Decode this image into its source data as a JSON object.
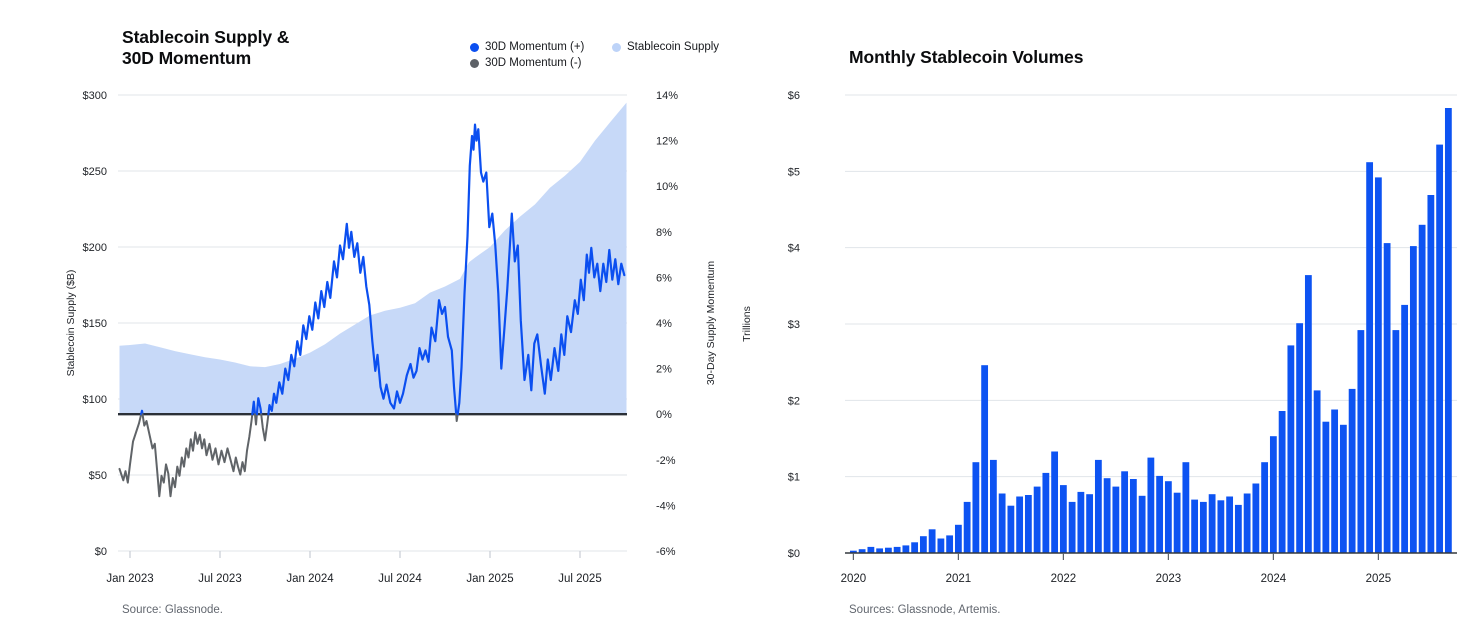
{
  "left_chart": {
    "title_line1": "Stablecoin Supply &",
    "title_line2": "30D Momentum",
    "legend": [
      {
        "label": "30D Momentum (+)",
        "color": "#0b4ff0"
      },
      {
        "label": "30D Momentum (-)",
        "color": "#5d6167"
      },
      {
        "label": "Stablecoin Supply",
        "color": "#bdd3f8"
      }
    ],
    "source": "Source: Glassnode."
  },
  "right_chart": {
    "title": "Monthly Stablecoin Volumes",
    "source": "Sources: Glassnode, Artemis."
  },
  "colors": {
    "gridline": "#e1e4e9",
    "axis_line": "#c9cdd4",
    "zero_line": "#2b3038",
    "bar_baseline": "#33383f",
    "momentum_positive": "#0b4ff0",
    "momentum_negative": "#606468",
    "supply_area": "#c7d9f8",
    "bar": "#0d53f2"
  },
  "chart_data": [
    {
      "type": "line",
      "title": "Stablecoin Supply & 30D Momentum",
      "x_axis": {
        "tick_labels": [
          "Jan 2023",
          "Jul 2023",
          "Jan 2024",
          "Jul 2024",
          "Jan 2025",
          "Jul 2025"
        ],
        "unit": "months since Jan 2023"
      },
      "y_left": {
        "label": "Stablecoin Supply ($B)",
        "tick_labels": [
          "$0",
          "$50",
          "$100",
          "$150",
          "$200",
          "$250",
          "$300"
        ],
        "range": [
          0,
          300
        ]
      },
      "y_right": {
        "label": "30-Day Supply Momentum",
        "tick_labels": [
          "14%",
          "12%",
          "10%",
          "8%",
          "6%",
          "4%",
          "2%",
          "0%",
          "-2%",
          "-4%",
          "-6%"
        ],
        "range": [
          -6,
          14
        ]
      },
      "series": [
        {
          "name": "Stablecoin Supply",
          "type": "area",
          "axis": "left",
          "fills_down_to": "momentum zero line",
          "points": [
            [
              -0.7,
              135
            ],
            [
              0,
              135.5
            ],
            [
              1,
              136.5
            ],
            [
              2,
              134
            ],
            [
              3,
              131.5
            ],
            [
              4,
              129.5
            ],
            [
              5,
              127.5
            ],
            [
              6,
              126
            ],
            [
              7,
              124
            ],
            [
              8,
              121.5
            ],
            [
              9,
              121
            ],
            [
              10,
              123
            ],
            [
              11,
              126.5
            ],
            [
              12,
              130.5
            ],
            [
              13,
              136
            ],
            [
              14,
              143
            ],
            [
              15,
              149
            ],
            [
              16,
              155
            ],
            [
              17,
              158
            ],
            [
              18,
              160
            ],
            [
              19,
              163
            ],
            [
              20,
              170
            ],
            [
              21,
              174
            ],
            [
              22,
              179
            ],
            [
              22.6,
              190
            ],
            [
              23,
              193
            ],
            [
              24,
              200
            ],
            [
              25,
              211
            ],
            [
              26,
              220
            ],
            [
              27,
              228
            ],
            [
              28,
              239
            ],
            [
              29,
              247
            ],
            [
              30,
              256
            ],
            [
              31,
              270
            ],
            [
              32,
              282
            ],
            [
              33.1,
              295
            ]
          ]
        },
        {
          "name": "30D Momentum",
          "type": "line",
          "axis": "right",
          "zero_line": true,
          "points": [
            [
              -0.7,
              -2.4
            ],
            [
              -0.45,
              -2.9
            ],
            [
              -0.3,
              -2.5
            ],
            [
              -0.15,
              -3.0
            ],
            [
              0,
              -2.2
            ],
            [
              0.2,
              -1.2
            ],
            [
              0.4,
              -0.8
            ],
            [
              0.6,
              -0.4
            ],
            [
              0.8,
              0.15
            ],
            [
              0.95,
              -0.5
            ],
            [
              1.1,
              -0.3
            ],
            [
              1.3,
              -0.9
            ],
            [
              1.5,
              -1.5
            ],
            [
              1.65,
              -1.3
            ],
            [
              1.8,
              -2.4
            ],
            [
              1.95,
              -3.6
            ],
            [
              2.1,
              -2.7
            ],
            [
              2.25,
              -3.0
            ],
            [
              2.4,
              -2.2
            ],
            [
              2.55,
              -2.6
            ],
            [
              2.7,
              -3.6
            ],
            [
              2.85,
              -2.8
            ],
            [
              3.0,
              -3.2
            ],
            [
              3.15,
              -2.3
            ],
            [
              3.3,
              -2.7
            ],
            [
              3.45,
              -1.9
            ],
            [
              3.6,
              -2.3
            ],
            [
              3.75,
              -1.5
            ],
            [
              3.9,
              -1.9
            ],
            [
              4.05,
              -1.1
            ],
            [
              4.2,
              -1.6
            ],
            [
              4.35,
              -0.8
            ],
            [
              4.5,
              -1.3
            ],
            [
              4.65,
              -0.9
            ],
            [
              4.8,
              -1.5
            ],
            [
              4.95,
              -1.1
            ],
            [
              5.1,
              -1.8
            ],
            [
              5.3,
              -1.3
            ],
            [
              5.5,
              -2.0
            ],
            [
              5.7,
              -1.5
            ],
            [
              5.9,
              -2.2
            ],
            [
              6.1,
              -1.6
            ],
            [
              6.3,
              -2.1
            ],
            [
              6.5,
              -1.5
            ],
            [
              6.7,
              -2.0
            ],
            [
              6.9,
              -2.5
            ],
            [
              7.05,
              -1.9
            ],
            [
              7.2,
              -2.3
            ],
            [
              7.35,
              -2.65
            ],
            [
              7.5,
              -2.1
            ],
            [
              7.65,
              -2.5
            ],
            [
              7.8,
              -1.6
            ],
            [
              7.95,
              -1.0
            ],
            [
              8.1,
              -0.3
            ],
            [
              8.25,
              0.55
            ],
            [
              8.4,
              -0.45
            ],
            [
              8.55,
              0.7
            ],
            [
              8.7,
              0.25
            ],
            [
              8.85,
              -0.6
            ],
            [
              9.0,
              -1.15
            ],
            [
              9.15,
              -0.4
            ],
            [
              9.3,
              0.4
            ],
            [
              9.45,
              0.15
            ],
            [
              9.6,
              0.9
            ],
            [
              9.75,
              0.5
            ],
            [
              9.95,
              1.4
            ],
            [
              10.15,
              0.9
            ],
            [
              10.35,
              2.0
            ],
            [
              10.55,
              1.5
            ],
            [
              10.75,
              2.6
            ],
            [
              10.95,
              2.1
            ],
            [
              11.15,
              3.2
            ],
            [
              11.35,
              2.6
            ],
            [
              11.55,
              3.9
            ],
            [
              11.75,
              3.3
            ],
            [
              11.95,
              4.3
            ],
            [
              12.15,
              3.7
            ],
            [
              12.35,
              4.9
            ],
            [
              12.55,
              4.2
            ],
            [
              12.75,
              5.4
            ],
            [
              12.95,
              4.7
            ],
            [
              13.15,
              5.8
            ],
            [
              13.35,
              5.1
            ],
            [
              13.6,
              6.7
            ],
            [
              13.8,
              6.0
            ],
            [
              14.0,
              7.4
            ],
            [
              14.2,
              6.8
            ],
            [
              14.45,
              8.35
            ],
            [
              14.6,
              7.3
            ],
            [
              14.75,
              8.0
            ],
            [
              14.95,
              6.9
            ],
            [
              15.15,
              7.5
            ],
            [
              15.35,
              6.2
            ],
            [
              15.55,
              6.9
            ],
            [
              15.75,
              5.6
            ],
            [
              15.95,
              4.8
            ],
            [
              16.15,
              3.2
            ],
            [
              16.35,
              1.9
            ],
            [
              16.5,
              2.6
            ],
            [
              16.7,
              1.2
            ],
            [
              16.9,
              0.68
            ],
            [
              17.1,
              1.3
            ],
            [
              17.35,
              0.5
            ],
            [
              17.6,
              0.25
            ],
            [
              17.8,
              1.0
            ],
            [
              18.0,
              0.5
            ],
            [
              18.2,
              0.9
            ],
            [
              18.45,
              1.7
            ],
            [
              18.7,
              2.2
            ],
            [
              18.9,
              1.6
            ],
            [
              19.1,
              1.9
            ],
            [
              19.3,
              2.9
            ],
            [
              19.5,
              2.4
            ],
            [
              19.7,
              2.8
            ],
            [
              19.9,
              2.3
            ],
            [
              20.1,
              3.8
            ],
            [
              20.35,
              3.2
            ],
            [
              20.6,
              5.0
            ],
            [
              20.8,
              4.4
            ],
            [
              21.0,
              4.7
            ],
            [
              21.2,
              3.4
            ],
            [
              21.45,
              2.8
            ],
            [
              21.6,
              1.2
            ],
            [
              21.78,
              -0.3
            ],
            [
              21.95,
              0.5
            ],
            [
              22.1,
              2.05
            ],
            [
              22.3,
              5.3
            ],
            [
              22.5,
              7.8
            ],
            [
              22.65,
              10.9
            ],
            [
              22.8,
              12.2
            ],
            [
              22.9,
              11.6
            ],
            [
              23.0,
              12.7
            ],
            [
              23.1,
              12.0
            ],
            [
              23.22,
              12.5
            ],
            [
              23.4,
              10.6
            ],
            [
              23.55,
              10.2
            ],
            [
              23.75,
              10.6
            ],
            [
              23.95,
              8.2
            ],
            [
              24.15,
              8.8
            ],
            [
              24.35,
              7.4
            ],
            [
              24.55,
              5.3
            ],
            [
              24.75,
              2.0
            ],
            [
              24.95,
              3.7
            ],
            [
              25.15,
              5.5
            ],
            [
              25.45,
              8.8
            ],
            [
              25.65,
              6.7
            ],
            [
              25.85,
              7.4
            ],
            [
              26.05,
              4.1
            ],
            [
              26.3,
              1.5
            ],
            [
              26.55,
              2.6
            ],
            [
              26.75,
              1.05
            ],
            [
              26.95,
              3.1
            ],
            [
              27.15,
              3.5
            ],
            [
              27.4,
              2.15
            ],
            [
              27.65,
              0.9
            ],
            [
              27.85,
              2.4
            ],
            [
              28.05,
              1.5
            ],
            [
              28.3,
              2.9
            ],
            [
              28.55,
              1.9
            ],
            [
              28.75,
              3.5
            ],
            [
              28.95,
              2.6
            ],
            [
              29.15,
              4.3
            ],
            [
              29.4,
              3.6
            ],
            [
              29.65,
              5.0
            ],
            [
              29.85,
              4.4
            ],
            [
              30.05,
              5.9
            ],
            [
              30.25,
              5.0
            ],
            [
              30.45,
              7.0
            ],
            [
              30.6,
              6.2
            ],
            [
              30.75,
              7.3
            ],
            [
              30.95,
              6.0
            ],
            [
              31.15,
              6.6
            ],
            [
              31.35,
              5.4
            ],
            [
              31.55,
              6.6
            ],
            [
              31.75,
              5.8
            ],
            [
              31.95,
              7.2
            ],
            [
              32.15,
              5.9
            ],
            [
              32.35,
              6.8
            ],
            [
              32.55,
              5.7
            ],
            [
              32.75,
              6.6
            ],
            [
              32.95,
              6.1
            ]
          ]
        }
      ],
      "source": "Source: Glassnode."
    },
    {
      "type": "bar",
      "title": "Monthly Stablecoin Volumes",
      "ylabel": "Trillions",
      "y_tick_labels": [
        "$0",
        "$1",
        "$2",
        "$3",
        "$4",
        "$5",
        "$6"
      ],
      "ylim": [
        0,
        6
      ],
      "x_tick_labels": [
        "2020",
        "2021",
        "2022",
        "2023",
        "2024",
        "2025"
      ],
      "start_month": "2020-01",
      "values": [
        0.03,
        0.05,
        0.08,
        0.06,
        0.07,
        0.08,
        0.1,
        0.14,
        0.22,
        0.31,
        0.19,
        0.23,
        0.37,
        0.67,
        1.19,
        2.46,
        1.22,
        0.78,
        0.62,
        0.74,
        0.76,
        0.87,
        1.05,
        1.33,
        0.89,
        0.67,
        0.8,
        0.77,
        1.22,
        0.98,
        0.87,
        1.07,
        0.97,
        0.75,
        1.25,
        1.01,
        0.94,
        0.79,
        1.19,
        0.7,
        0.67,
        0.77,
        0.69,
        0.74,
        0.63,
        0.78,
        0.91,
        1.19,
        1.53,
        1.86,
        2.72,
        3.01,
        3.64,
        2.13,
        1.72,
        1.88,
        1.68,
        2.15,
        2.92,
        5.12,
        4.92,
        4.06,
        2.92,
        3.25,
        4.02,
        4.3,
        4.69,
        5.35,
        5.83
      ],
      "source": "Sources: Glassnode, Artemis."
    }
  ]
}
